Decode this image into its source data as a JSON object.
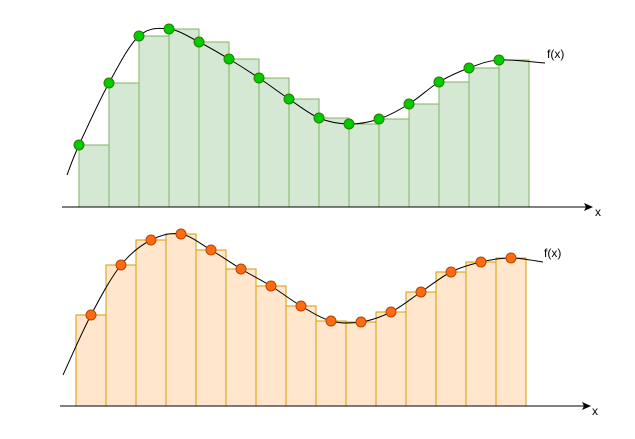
{
  "panels": [
    {
      "curve_label": "f(x)",
      "axis_label": "x"
    },
    {
      "curve_label": "f(x)",
      "axis_label": "x"
    }
  ]
}
